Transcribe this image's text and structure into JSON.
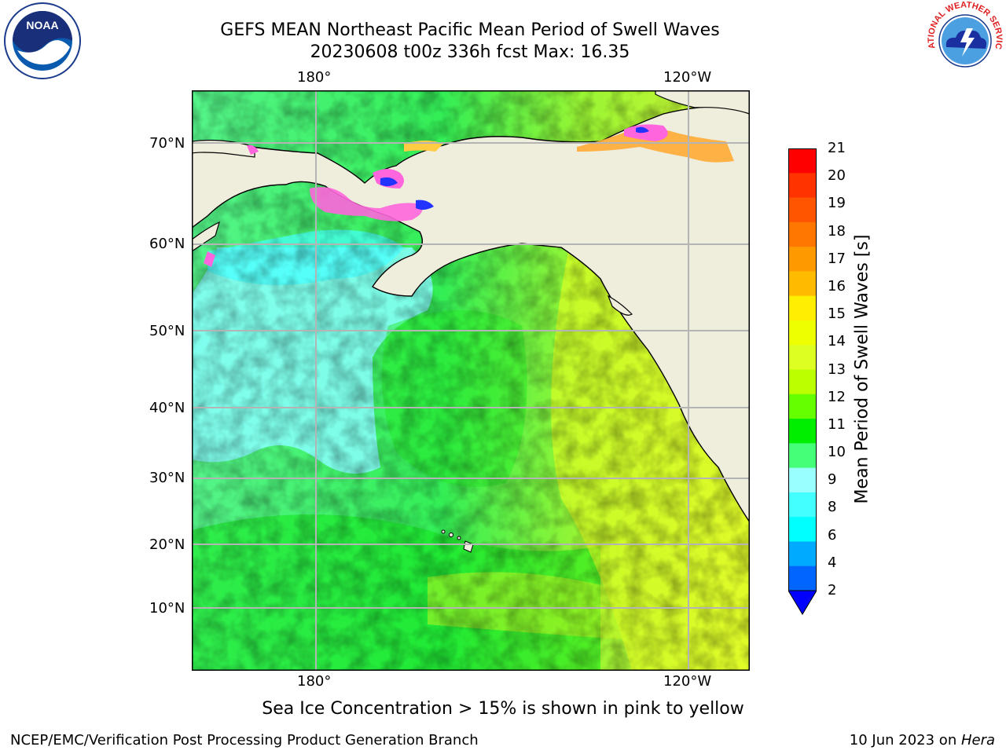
{
  "title": {
    "line1": "GEFS MEAN Northeast Pacific Mean Period of Swell Waves",
    "line2": "20230608 t00z 336h fcst   Max: 16.35"
  },
  "map": {
    "lon_labels": [
      "180°",
      "120°W"
    ],
    "lat_labels": [
      "70°N",
      "60°N",
      "50°N",
      "40°N",
      "30°N",
      "20°N",
      "10°N"
    ],
    "colors": {
      "land": "#efeddc",
      "grid": "#b4b4b4",
      "ice_pink": "#ff66dd",
      "ice_yellow": "#ffee44"
    }
  },
  "colorbar": {
    "label": "Mean Period of Swell Waves [s]",
    "ticks": [
      "21",
      "20",
      "19",
      "18",
      "17",
      "16",
      "15",
      "14",
      "13",
      "12",
      "11",
      "10",
      "9",
      "8",
      "6",
      "4",
      "2"
    ],
    "colors": [
      "#ff0000",
      "#ff3300",
      "#ff5500",
      "#ff7700",
      "#ff9900",
      "#ffbb00",
      "#ffee00",
      "#eeff00",
      "#ddff22",
      "#bbff00",
      "#66ff00",
      "#00ee00",
      "#44ff77",
      "#99ffff",
      "#44ffff",
      "#00ffff",
      "#00aaff",
      "#0066ff",
      "#0000ff"
    ]
  },
  "caption": "Sea Ice Concentration > 15% is shown in pink to yellow",
  "footer": {
    "left": "NCEP/EMC/Verification Post Processing Product Generation Branch",
    "date": "10 Jun 2023 on ",
    "host": "Hera"
  },
  "logos": {
    "noaa": "NOAA",
    "nws": "NATIONAL WEATHER SERVICE"
  }
}
